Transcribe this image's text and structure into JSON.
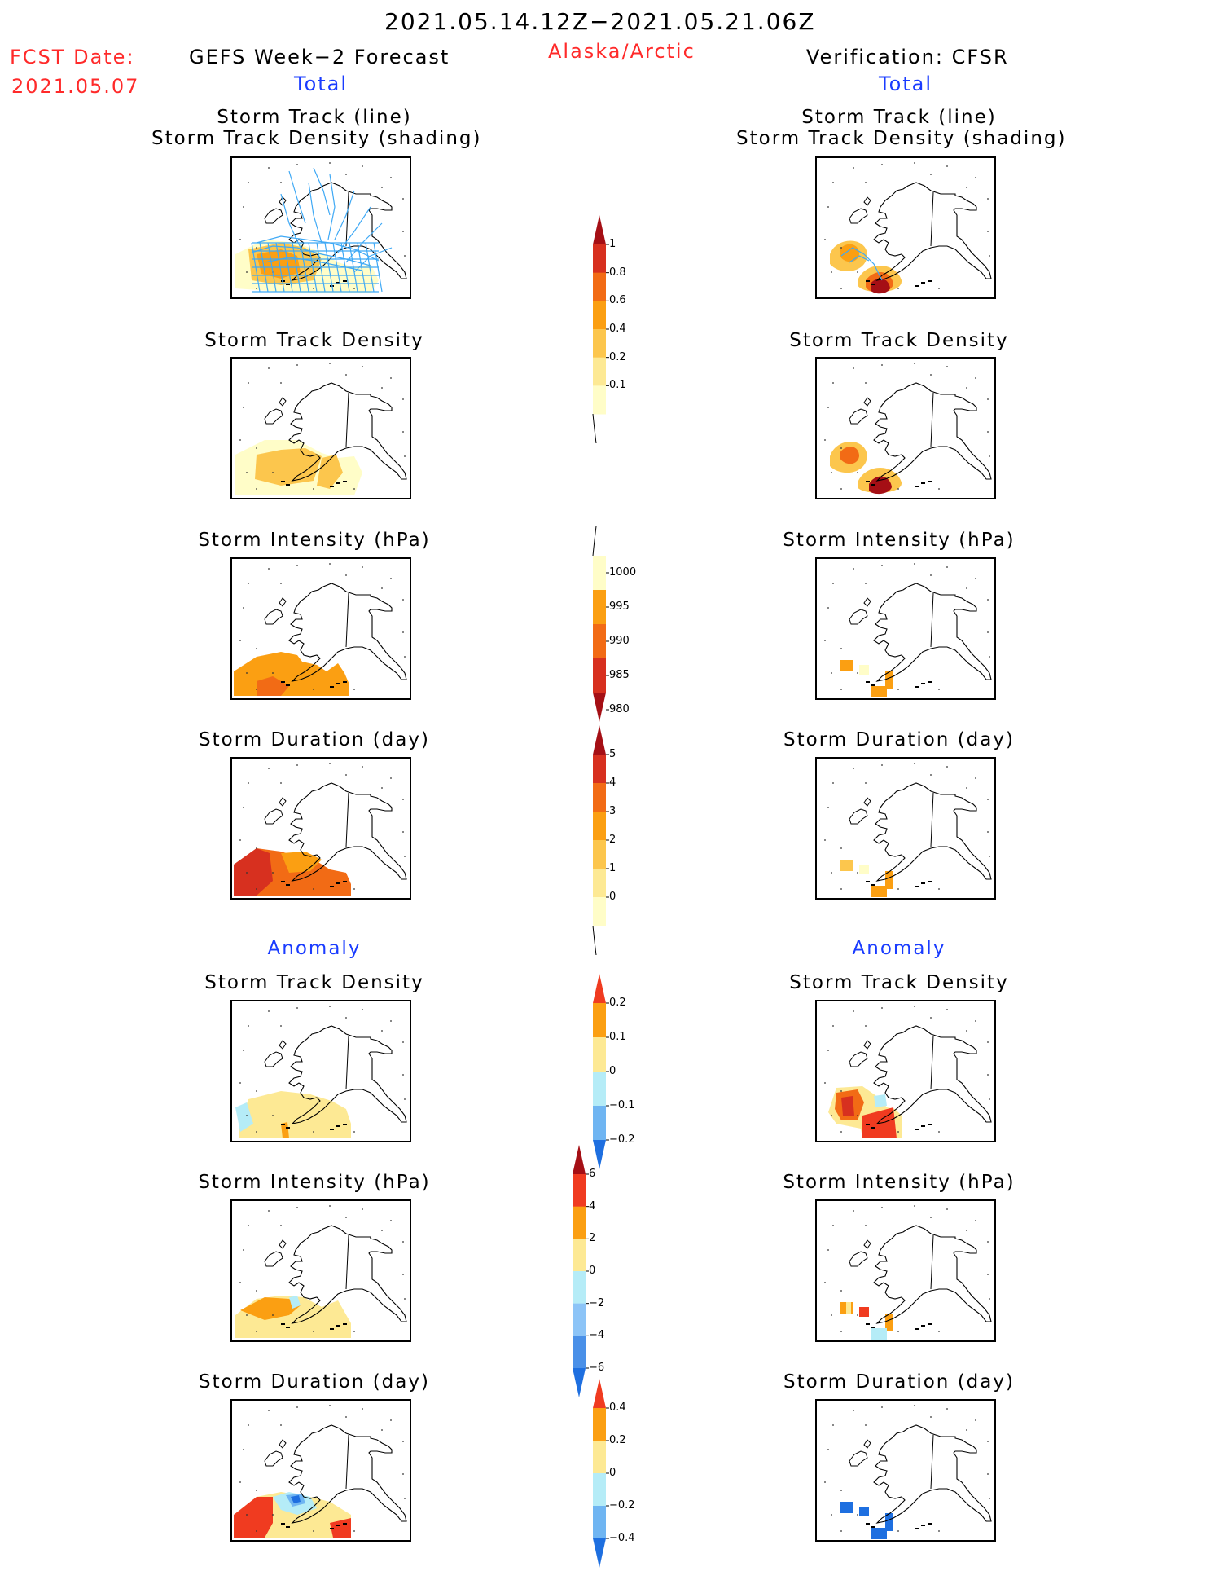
{
  "header": {
    "period": "2021.05.14.12Z−2021.05.21.06Z",
    "fcst_label": "FCST Date:",
    "fcst_date": "2021.05.07",
    "left_title": "GEFS Week−2 Forecast",
    "region": "Alaska/Arctic",
    "right_title": "Verification: CFSR"
  },
  "sections": {
    "total": "Total",
    "anomaly": "Anomaly"
  },
  "panel_titles": {
    "track_line": "Storm Track (line)",
    "track_shading": "Storm Track Density (shading)",
    "density": "Storm Track Density",
    "intensity": "Storm Intensity (hPa)",
    "duration": "Storm Duration (day)"
  },
  "colorbars": {
    "density_total": {
      "labels": [
        "1",
        "0.8",
        "0.6",
        "0.4",
        "0.2",
        "0.1"
      ],
      "colors": [
        "#a50f15",
        "#d7301f",
        "#f26b15",
        "#fb9f12",
        "#fcc64d",
        "#fde994",
        "#fffdc8"
      ]
    },
    "intensity_total": {
      "labels": [
        "1000",
        "995",
        "990",
        "985",
        "980"
      ],
      "colors": [
        "#fffdc8",
        "#fb9f12",
        "#f26b15",
        "#d7301f",
        "#a50f15"
      ]
    },
    "duration_total": {
      "labels": [
        "5",
        "4",
        "3",
        "2",
        "1",
        "0"
      ],
      "colors": [
        "#a50f15",
        "#d7301f",
        "#f26b15",
        "#fb9f12",
        "#fcc64d",
        "#fde994",
        "#fffdc8"
      ]
    },
    "density_anom": {
      "labels": [
        "0.2",
        "0.1",
        "0",
        "−0.1",
        "−0.2"
      ],
      "colors": [
        "#f03b20",
        "#fb9f12",
        "#fde994",
        "#b5ecf7",
        "#6fb5f2",
        "#1e6fe0"
      ]
    },
    "intensity_anom": {
      "labels": [
        "6",
        "4",
        "2",
        "0",
        "−2",
        "−4",
        "−6"
      ],
      "colors": [
        "#a50f15",
        "#f03b20",
        "#fb9f12",
        "#fde994",
        "#b5ecf7",
        "#8cc4f7",
        "#4a90e8",
        "#1e6fe0"
      ]
    },
    "duration_anom": {
      "labels": [
        "0.4",
        "0.2",
        "0",
        "−0.2",
        "−0.4"
      ],
      "colors": [
        "#f03b20",
        "#fb9f12",
        "#fde994",
        "#b5ecf7",
        "#6fb5f2",
        "#1e6fe0"
      ]
    }
  }
}
